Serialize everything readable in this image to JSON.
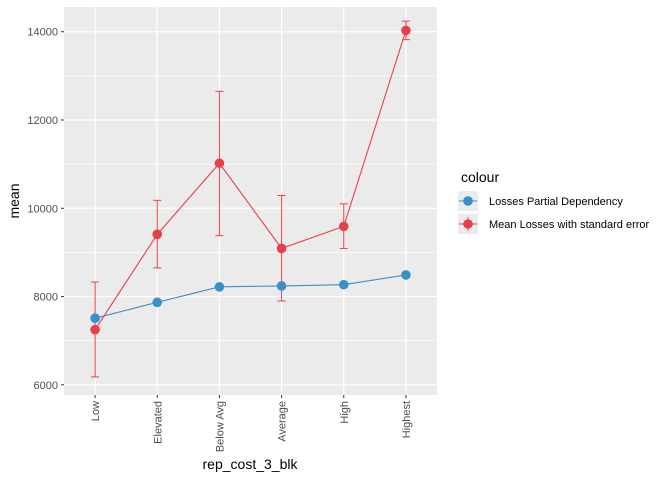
{
  "chart_data": {
    "type": "line",
    "xlabel": "rep_cost_3_blk",
    "ylabel": "mean",
    "categories": [
      "Low",
      "Elevated",
      "Below Avg",
      "Average",
      "High",
      "Highest"
    ],
    "yticks": [
      6000,
      8000,
      10000,
      12000,
      14000
    ],
    "ylim": [
      5770,
      14560
    ],
    "grid": true,
    "legend": {
      "title": "colour",
      "placement": "right"
    },
    "series": [
      {
        "name": "Losses Partial Dependency",
        "color": "#3A8FC9",
        "values": [
          7510,
          7870,
          8220,
          8240,
          8270,
          8490
        ]
      },
      {
        "name": "Mean Losses with standard error",
        "color": "#E8404A",
        "values": [
          7250,
          9410,
          11020,
          9090,
          9590,
          14030
        ],
        "error_low": [
          6180,
          8650,
          9380,
          7900,
          9090,
          13820
        ],
        "error_high": [
          8330,
          10180,
          12650,
          10290,
          10100,
          14240
        ]
      }
    ]
  }
}
